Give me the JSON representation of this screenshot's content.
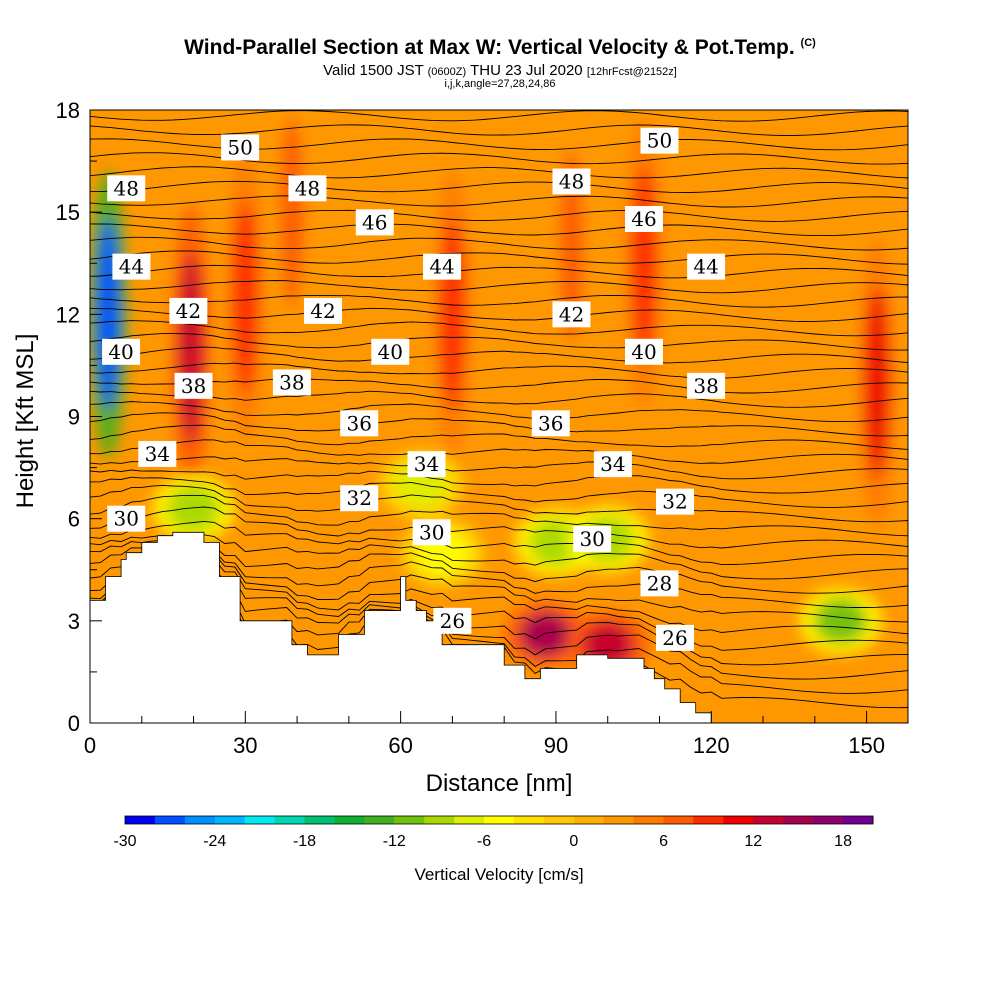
{
  "header": {
    "title": "Wind-Parallel Section at Max W: Vertical Velocity & Pot.Temp.",
    "copyright": "(C)",
    "valid_prefix": "Valid 1500 JST",
    "valid_utc": "(0600Z)",
    "valid_date": "THU 23 Jul 2020",
    "forecast": "[12hrFcst@2152z]",
    "indices": "i,j,k,angle=27,28,24,86"
  },
  "colors": {
    "colorbar": [
      "#0000ee",
      "#0050ff",
      "#0090ff",
      "#00b8ff",
      "#00eaf0",
      "#00d8b0",
      "#00c070",
      "#10b030",
      "#40b020",
      "#70c010",
      "#a8d800",
      "#ddee00",
      "#ffff00",
      "#ffe000",
      "#ffc800",
      "#ffb000",
      "#ff9800",
      "#ff7a00",
      "#ff5a00",
      "#ff2a00",
      "#ee0000",
      "#c80030",
      "#a80050",
      "#8c0070",
      "#700090"
    ],
    "terrain": "#ffffff",
    "contour": "#000000"
  },
  "chart_data": {
    "type": "heatmap",
    "title": "Wind-Parallel Section at Max W: Vertical Velocity & Pot.Temp.",
    "xlabel": "Distance [nm]",
    "ylabel": "Height [Kft MSL]",
    "xlim": [
      0,
      158
    ],
    "ylim": [
      0,
      18
    ],
    "xticks": [
      0,
      30,
      60,
      90,
      120,
      150
    ],
    "yticks": [
      0,
      3,
      6,
      9,
      12,
      15,
      18
    ],
    "colorbar": {
      "title": "Vertical Velocity [cm/s]",
      "range": [
        -30,
        20
      ],
      "ticks": [
        -30,
        -24,
        -18,
        -12,
        -6,
        0,
        6,
        12,
        18
      ]
    },
    "terrain_profile": {
      "x": [
        0,
        3,
        3,
        6,
        6,
        7,
        7,
        10,
        10,
        13,
        13,
        16,
        16,
        22,
        22,
        25,
        25,
        29,
        29,
        39,
        39,
        42,
        42,
        48,
        48,
        53,
        53,
        60,
        60,
        61,
        61,
        63,
        63,
        65,
        65,
        68,
        68,
        80,
        80,
        84,
        84,
        87,
        87,
        94,
        94,
        100,
        100,
        107,
        107,
        109,
        109,
        111,
        111,
        114,
        114,
        117,
        117,
        120,
        120,
        158
      ],
      "height": [
        3.6,
        3.6,
        4.3,
        4.3,
        4.8,
        4.8,
        5.0,
        5.0,
        5.3,
        5.3,
        5.5,
        5.5,
        5.6,
        5.6,
        5.3,
        5.3,
        4.3,
        4.3,
        3.0,
        3.0,
        2.3,
        2.3,
        2.0,
        2.0,
        2.6,
        2.6,
        3.3,
        3.3,
        4.3,
        4.3,
        3.6,
        3.6,
        3.3,
        3.3,
        3.0,
        3.0,
        2.3,
        2.3,
        1.7,
        1.7,
        1.3,
        1.3,
        1.6,
        1.6,
        2.0,
        2.0,
        1.9,
        1.9,
        1.6,
        1.6,
        1.3,
        1.3,
        1.0,
        1.0,
        0.6,
        0.6,
        0.3,
        0.3,
        0.0,
        0.0
      ]
    },
    "theta_labels": [
      {
        "value": "50",
        "x": 29,
        "y": 16.9
      },
      {
        "value": "48",
        "x": 7,
        "y": 15.7
      },
      {
        "value": "48",
        "x": 42,
        "y": 15.7
      },
      {
        "value": "46",
        "x": 55,
        "y": 14.7
      },
      {
        "value": "44",
        "x": 8,
        "y": 13.4
      },
      {
        "value": "44",
        "x": 68,
        "y": 13.4
      },
      {
        "value": "42",
        "x": 19,
        "y": 12.1
      },
      {
        "value": "42",
        "x": 45,
        "y": 12.1
      },
      {
        "value": "40",
        "x": 6,
        "y": 10.9
      },
      {
        "value": "40",
        "x": 58,
        "y": 10.9
      },
      {
        "value": "38",
        "x": 20,
        "y": 9.9
      },
      {
        "value": "38",
        "x": 39,
        "y": 10.0
      },
      {
        "value": "36",
        "x": 52,
        "y": 8.8
      },
      {
        "value": "34",
        "x": 13,
        "y": 7.9
      },
      {
        "value": "34",
        "x": 65,
        "y": 7.6
      },
      {
        "value": "32",
        "x": 52,
        "y": 6.6
      },
      {
        "value": "30",
        "x": 7,
        "y": 6.0
      },
      {
        "value": "30",
        "x": 66,
        "y": 5.6
      },
      {
        "value": "26",
        "x": 70,
        "y": 3.0
      },
      {
        "value": "50",
        "x": 110,
        "y": 17.1
      },
      {
        "value": "48",
        "x": 93,
        "y": 15.9
      },
      {
        "value": "46",
        "x": 107,
        "y": 14.8
      },
      {
        "value": "44",
        "x": 119,
        "y": 13.4
      },
      {
        "value": "42",
        "x": 93,
        "y": 12.0
      },
      {
        "value": "40",
        "x": 107,
        "y": 10.9
      },
      {
        "value": "38",
        "x": 119,
        "y": 9.9
      },
      {
        "value": "36",
        "x": 89,
        "y": 8.8
      },
      {
        "value": "34",
        "x": 101,
        "y": 7.6
      },
      {
        "value": "32",
        "x": 113,
        "y": 6.5
      },
      {
        "value": "30",
        "x": 97,
        "y": 5.4
      },
      {
        "value": "28",
        "x": 110,
        "y": 4.1
      },
      {
        "value": "26",
        "x": 113,
        "y": 2.5
      }
    ],
    "velocity_features": [
      {
        "x": 3.5,
        "y": 12.0,
        "value": -27
      },
      {
        "x": 19.5,
        "y": 11.0,
        "value": 13
      },
      {
        "x": 30.0,
        "y": 12.5,
        "value": 8
      },
      {
        "x": 39.0,
        "y": 15.0,
        "value": 6
      },
      {
        "x": 70.0,
        "y": 12.0,
        "value": 9
      },
      {
        "x": 93.0,
        "y": 14.0,
        "value": 7
      },
      {
        "x": 107.0,
        "y": 13.5,
        "value": 9
      },
      {
        "x": 152.0,
        "y": 10.0,
        "value": 10
      },
      {
        "x": 88.0,
        "y": 2.6,
        "value": 15
      },
      {
        "x": 100.0,
        "y": 2.3,
        "value": 12
      },
      {
        "x": 20.0,
        "y": 6.3,
        "value": -10
      },
      {
        "x": 90.0,
        "y": 5.3,
        "value": -10
      },
      {
        "x": 100.0,
        "y": 5.4,
        "value": -9
      },
      {
        "x": 64.0,
        "y": 7.0,
        "value": -7
      },
      {
        "x": 145.0,
        "y": 3.0,
        "value": -11
      },
      {
        "x": 68.0,
        "y": 5.0,
        "value": -6
      }
    ]
  }
}
